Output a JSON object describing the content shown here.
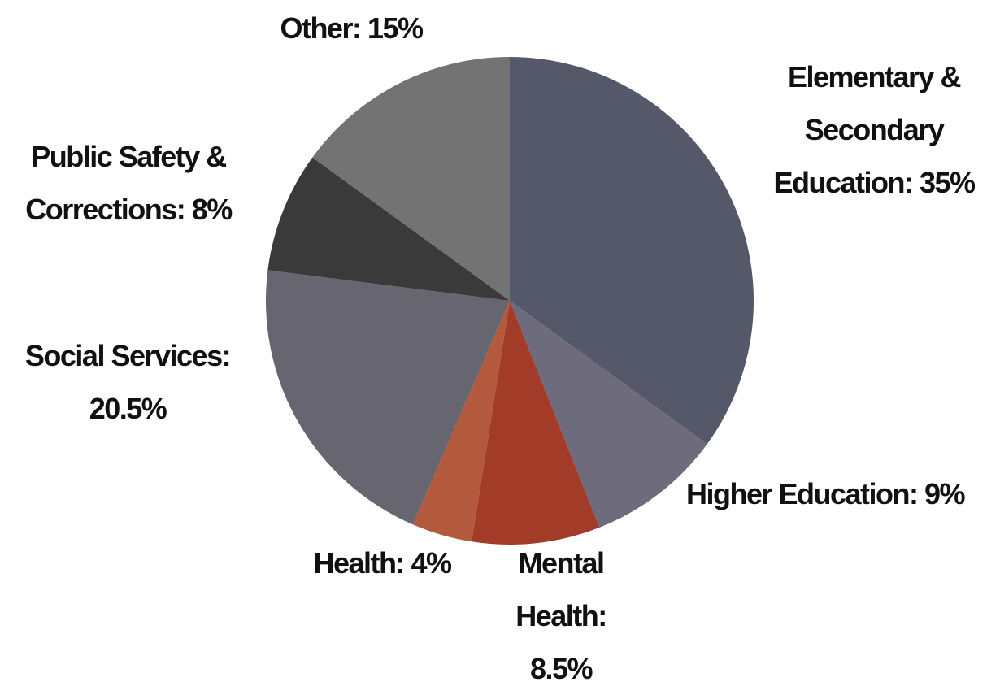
{
  "chart_data": {
    "type": "pie",
    "categories": [
      "Elementary & Secondary Education:",
      "Higher Education:",
      "Mental Health:",
      "Health:",
      "Social Services:",
      "Public Safety & Corrections:",
      "Other:"
    ],
    "values": [
      35,
      9,
      8.5,
      4,
      20.5,
      8,
      15
    ],
    "value_labels": [
      "35%",
      "9%",
      "8.5%",
      "4%",
      "20.5%",
      "8%",
      "15%"
    ],
    "colors": [
      "#545869",
      "#6e6b7c",
      "#a23c28",
      "#b35a3e",
      "#676570",
      "#3a3a3a",
      "#737373"
    ],
    "start_angle": 0,
    "direction": "clockwise"
  }
}
